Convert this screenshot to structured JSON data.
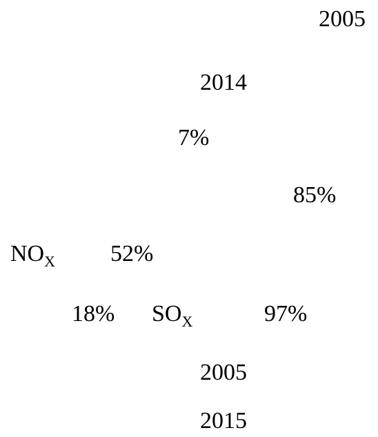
{
  "labels": [
    {
      "text": "2005"
    },
    {
      "text": "2014"
    },
    {
      "text": "7%"
    },
    {
      "text": "85%"
    },
    {
      "text": "NO",
      "sub": "X"
    },
    {
      "text": "52%"
    },
    {
      "text": "18%"
    },
    {
      "text": "SO",
      "sub": "X"
    },
    {
      "text": "97%"
    },
    {
      "text": "2005"
    },
    {
      "text": "2015"
    }
  ]
}
